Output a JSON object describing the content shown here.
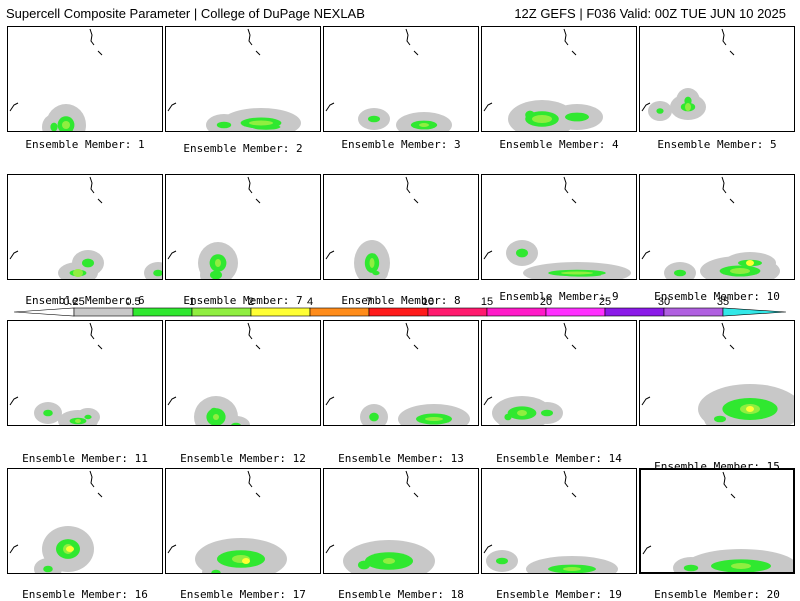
{
  "header": {
    "title": "Supercell Composite Parameter | College of DuPage NEXLAB",
    "run_info": "12Z GEFS | F036 Valid: 00Z TUE JUN 10 2025"
  },
  "colorbar": {
    "ticks": [
      "0.25",
      "0.5",
      "1",
      "2",
      "4",
      "7",
      "10",
      "15",
      "20",
      "25",
      "30",
      "35"
    ],
    "colors": [
      "#c8c8c8",
      "#30e830",
      "#90ee40",
      "#ffff33",
      "#ff8c1a",
      "#ff1a1a",
      "#ff1a6e",
      "#ff1ac8",
      "#ff30ff",
      "#8b1ae8",
      "#b060e0",
      "#33e8e8"
    ]
  },
  "panels": [
    {
      "label": "Ensemble Member: 1"
    },
    {
      "label": "Ensemble Member: 2"
    },
    {
      "label": "Ensemble Member: 3"
    },
    {
      "label": "Ensemble Member: 4"
    },
    {
      "label": "Ensemble Member: 5"
    },
    {
      "label": "Ensemble Member: 6"
    },
    {
      "label": "Ensemble Member: 7"
    },
    {
      "label": "Ensemble Member: 8"
    },
    {
      "label": "Ensemble Member: 9"
    },
    {
      "label": "Ensemble Member: 10"
    },
    {
      "label": "Ensemble Member: 11"
    },
    {
      "label": "Ensemble Member: 12"
    },
    {
      "label": "Ensemble Member: 13"
    },
    {
      "label": "Ensemble Member: 14"
    },
    {
      "label": "Ensemble Member: 15"
    },
    {
      "label": "Ensemble Member: 16"
    },
    {
      "label": "Ensemble Member: 17"
    },
    {
      "label": "Ensemble Member: 18"
    },
    {
      "label": "Ensemble Member: 19"
    },
    {
      "label": "Ensemble Member: 20"
    }
  ]
}
